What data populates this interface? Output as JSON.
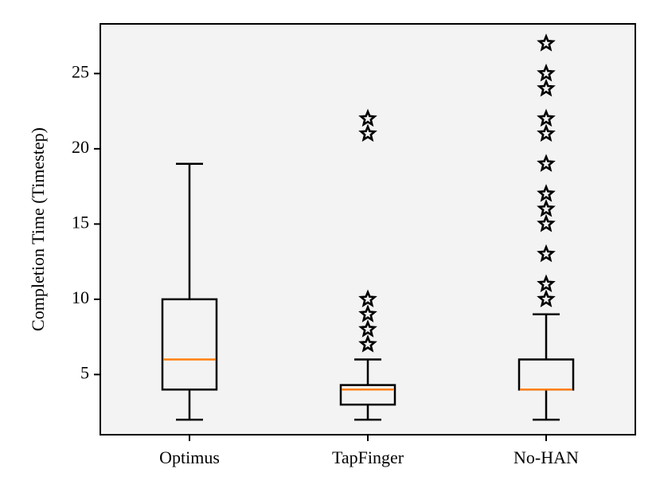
{
  "chart_data": {
    "type": "box",
    "ylabel": "Completion Time (Timestep)",
    "xlabel": "",
    "title": "",
    "ylim": [
      1.0,
      28.3
    ],
    "yticks": [
      5,
      10,
      15,
      20,
      25
    ],
    "grid": false,
    "legend": "none",
    "colors": {
      "plot_background": "#f3f3f3",
      "box": "#000000",
      "median": "#ff7f0e",
      "flier": "#000000"
    },
    "flier_marker": "star-icon",
    "categories": [
      "Optimus",
      "TapFinger",
      "No-HAN"
    ],
    "boxes": [
      {
        "name": "Optimus",
        "whisker_low": 2,
        "q1": 4,
        "median": 6,
        "q3": 10,
        "whisker_high": 19,
        "outliers": []
      },
      {
        "name": "TapFinger",
        "whisker_low": 2,
        "q1": 3,
        "median": 4,
        "q3": 4.3,
        "whisker_high": 6,
        "outliers": [
          7,
          8,
          9,
          10,
          21,
          22
        ]
      },
      {
        "name": "No-HAN",
        "whisker_low": 2,
        "q1": 4,
        "median": 4,
        "q3": 6,
        "whisker_high": 9,
        "outliers": [
          10,
          11,
          13,
          15,
          16,
          17,
          19,
          21,
          22,
          24,
          25,
          27
        ]
      }
    ]
  }
}
